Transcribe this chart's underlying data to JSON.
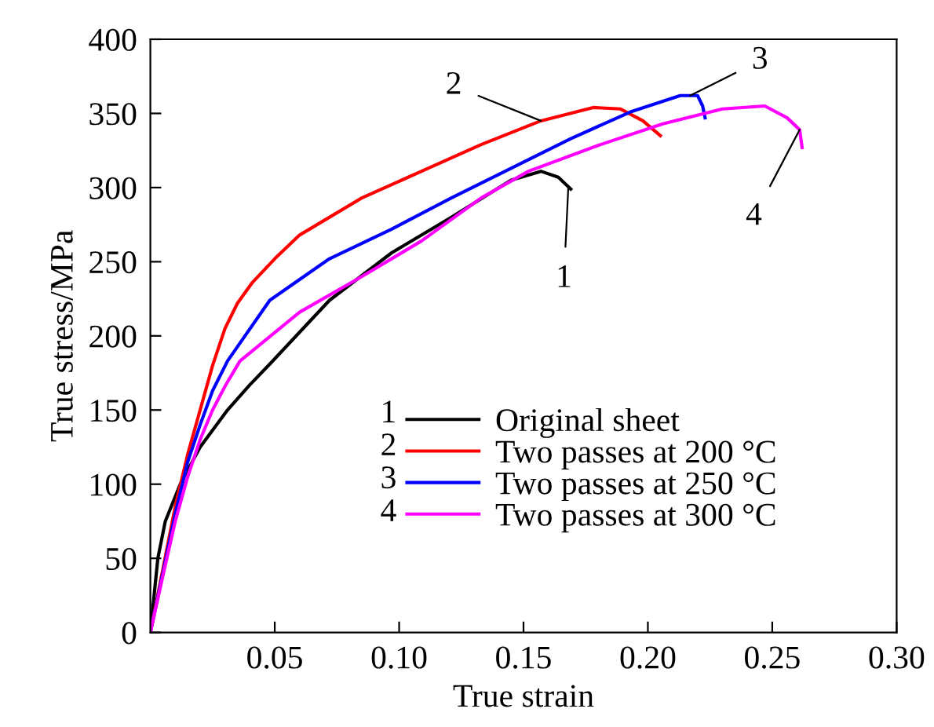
{
  "chart_data": {
    "type": "line",
    "xlabel": "True strain",
    "ylabel": "True stress/MPa",
    "xlim": [
      0,
      0.3
    ],
    "ylim": [
      0,
      400
    ],
    "xticks": [
      {
        "value": 0.05,
        "label": "0.05"
      },
      {
        "value": 0.1,
        "label": "0.10"
      },
      {
        "value": 0.15,
        "label": "0.15"
      },
      {
        "value": 0.2,
        "label": "0.20"
      },
      {
        "value": 0.25,
        "label": "0.25"
      },
      {
        "value": 0.3,
        "label": "0.30"
      }
    ],
    "yticks": [
      0,
      50,
      100,
      150,
      200,
      250,
      300,
      350,
      400
    ],
    "legend": "lower right",
    "grid": false,
    "marker": "none",
    "line_style": "solid",
    "series": [
      {
        "name": "Original sheet",
        "color": "#000000",
        "x": [
          0,
          0.003,
          0.006,
          0.012,
          0.02,
          0.031,
          0.04,
          0.048,
          0.072,
          0.097,
          0.121,
          0.145,
          0.157,
          0.164,
          0.169
        ],
        "values": [
          0,
          50,
          75,
          100,
          125,
          150,
          167,
          181,
          224,
          256,
          280,
          305,
          311,
          307,
          299
        ]
      },
      {
        "name": "Two passes at 200 °C",
        "color": "#ff0000",
        "x": [
          0,
          0.01,
          0.015,
          0.02,
          0.025,
          0.03,
          0.035,
          0.041,
          0.05,
          0.06,
          0.085,
          0.109,
          0.133,
          0.157,
          0.178,
          0.189,
          0.198,
          0.205
        ],
        "values": [
          0,
          85,
          120,
          150,
          180,
          205,
          222,
          236,
          252,
          268,
          293,
          311,
          329,
          345,
          354,
          353,
          345,
          335
        ]
      },
      {
        "name": "Two passes at 250 °C",
        "color": "#0000ff",
        "x": [
          0,
          0.005,
          0.01,
          0.015,
          0.02,
          0.025,
          0.031,
          0.048,
          0.072,
          0.097,
          0.121,
          0.145,
          0.169,
          0.193,
          0.213,
          0.22,
          0.222,
          0.223
        ],
        "values": [
          0,
          40,
          80,
          115,
          140,
          163,
          183,
          224,
          252,
          272,
          293,
          313,
          333,
          351,
          362,
          362,
          355,
          347
        ]
      },
      {
        "name": "Two passes at 300 °C",
        "color": "#ff00ff",
        "x": [
          0,
          0.005,
          0.01,
          0.015,
          0.02,
          0.025,
          0.03,
          0.036,
          0.06,
          0.085,
          0.109,
          0.133,
          0.152,
          0.181,
          0.206,
          0.23,
          0.247,
          0.256,
          0.261,
          0.262
        ],
        "values": [
          0,
          38,
          75,
          105,
          130,
          150,
          166,
          183,
          216,
          240,
          264,
          293,
          311,
          329,
          343,
          353,
          355,
          347,
          339,
          327
        ]
      }
    ],
    "annotations": [
      {
        "text": "1",
        "x": 0.168,
        "y": 300
      },
      {
        "text": "2",
        "x": 0.157,
        "y": 345
      },
      {
        "text": "3",
        "x": 0.217,
        "y": 362
      },
      {
        "text": "4",
        "x": 0.261,
        "y": 339
      }
    ]
  }
}
